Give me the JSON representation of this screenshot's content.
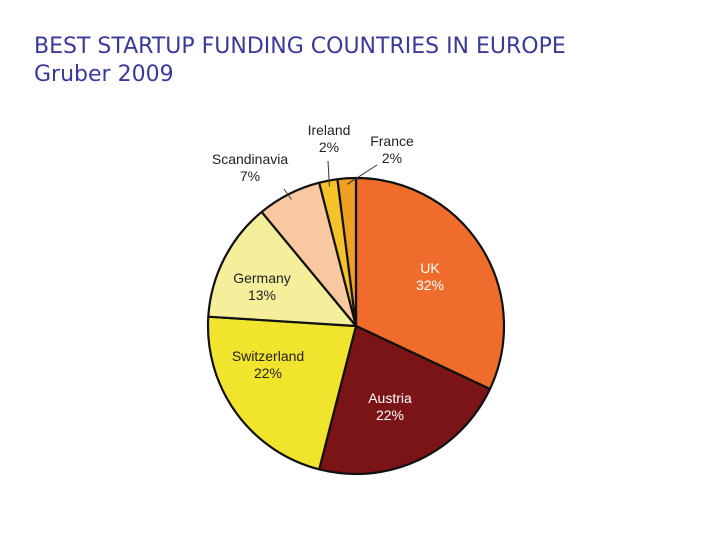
{
  "slide": {
    "title": "BEST STARTUP FUNDING COUNTRIES IN EUROPE",
    "subtitle": "Gruber 2009"
  },
  "chart_data": {
    "type": "pie",
    "title": "",
    "slices": [
      {
        "label": "UK",
        "value": 32,
        "value_label": "32%",
        "color": "#f06c2c",
        "text_color": "#ffffff"
      },
      {
        "label": "Austria",
        "value": 22,
        "value_label": "22%",
        "color": "#7a1416",
        "text_color": "#ffffff"
      },
      {
        "label": "Switzerland",
        "value": 22,
        "value_label": "22%",
        "color": "#f0e42c",
        "text_color": "#222222"
      },
      {
        "label": "Germany",
        "value": 13,
        "value_label": "13%",
        "color": "#f5ef9c",
        "text_color": "#222222"
      },
      {
        "label": "Scandinavia",
        "value": 7,
        "value_label": "7%",
        "color": "#f8c8a0",
        "text_color": "#222222"
      },
      {
        "label": "Ireland",
        "value": 2,
        "value_label": "2%",
        "color": "#f5c22a",
        "text_color": "#222222"
      },
      {
        "label": "France",
        "value": 2,
        "value_label": "2%",
        "color": "#f0a020",
        "text_color": "#222222"
      }
    ],
    "start": "top",
    "direction": "clockwise"
  }
}
